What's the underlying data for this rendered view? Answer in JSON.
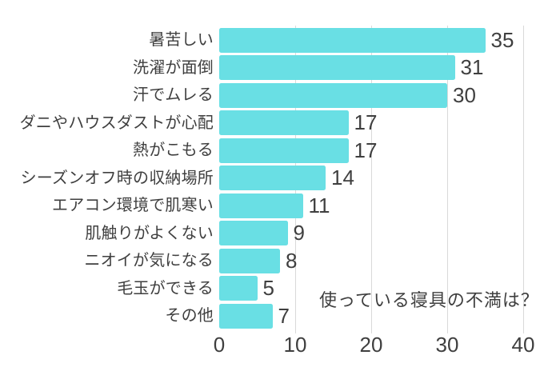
{
  "chart_data": {
    "type": "bar",
    "orientation": "horizontal",
    "title": "",
    "annotation": "使っている寝具の不満は？",
    "categories": [
      "暑苦しい",
      "洗濯が面倒",
      "汗でムレる",
      "ダニやハウスダストが心配",
      "熱がこもる",
      "シーズンオフ時の収納場所",
      "エアコン環境で肌寒い",
      "肌触りがよくない",
      "ニオイが気になる",
      "毛玉ができる",
      "その他"
    ],
    "values": [
      35,
      31,
      30,
      17,
      17,
      14,
      11,
      9,
      8,
      5,
      7
    ],
    "value_labels_shown": true,
    "xlabel": "",
    "ylabel": "",
    "xlim": [
      0,
      40
    ],
    "xticks": [
      0,
      10,
      20,
      30,
      40
    ],
    "grid": true,
    "legend": false,
    "colors": {
      "bar": "#69dfe4",
      "gridline": "#d9d9d9",
      "text": "#3f3f3f",
      "background": "#ffffff"
    }
  }
}
